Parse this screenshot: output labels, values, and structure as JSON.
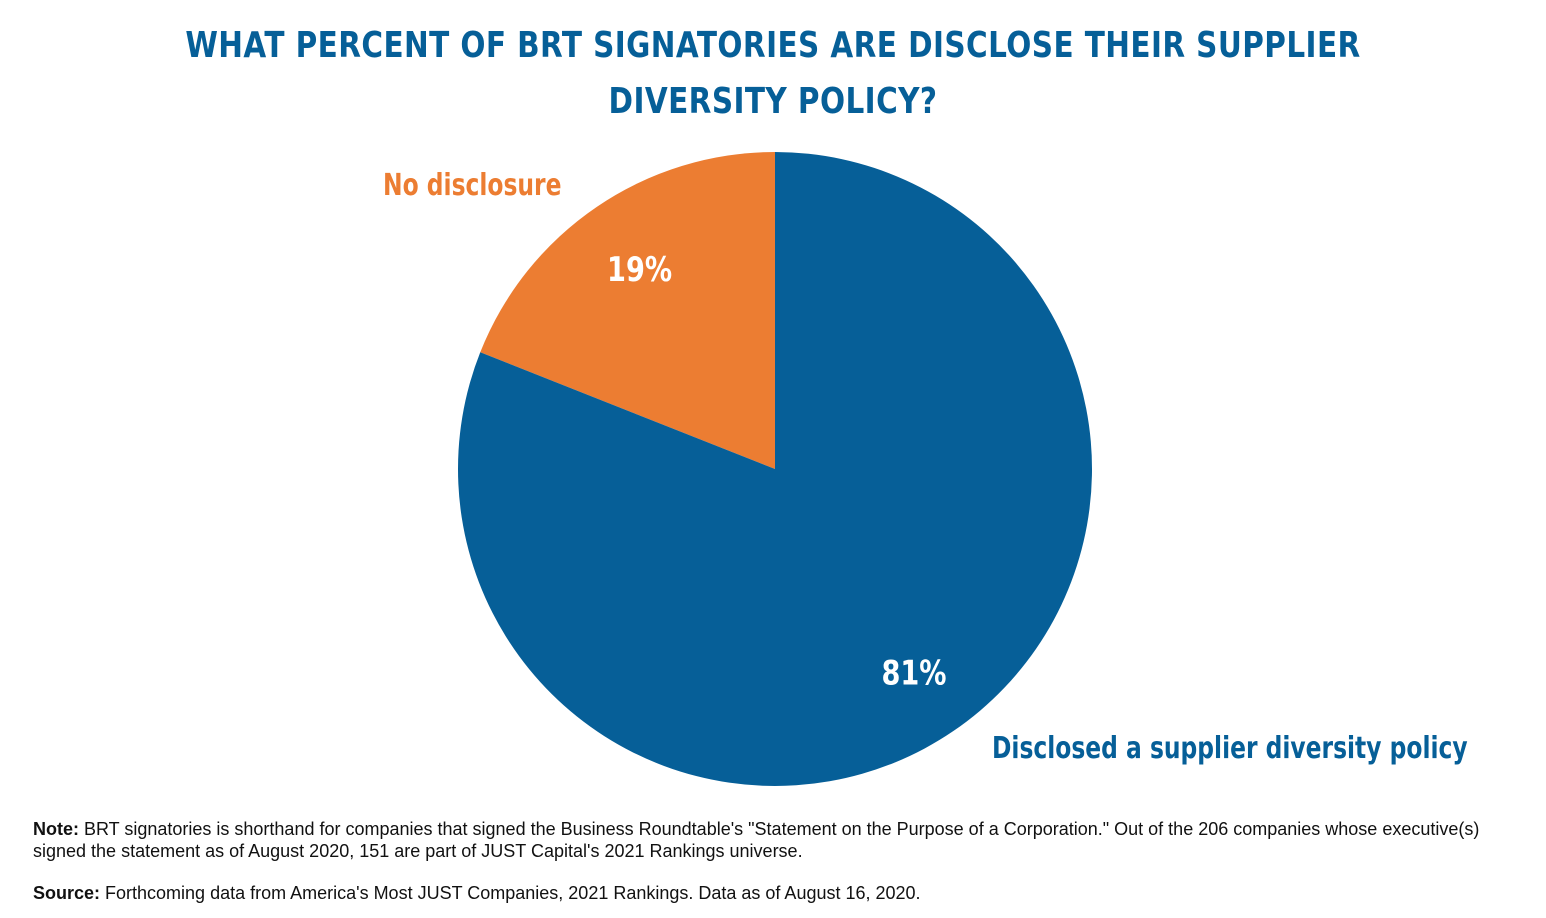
{
  "chart_data": {
    "type": "pie",
    "title_lines": [
      "WHAT PERCENT OF BRT SIGNATORIES ARE DISCLOSE THEIR SUPPLIER",
      "DIVERSITY POLICY?"
    ],
    "categories": [
      "No disclosure",
      "Disclosed a supplier diversity policy"
    ],
    "values": [
      19,
      81
    ],
    "value_labels": [
      "19%",
      "81%"
    ],
    "colors": [
      "#ec7d32",
      "#065f98"
    ],
    "label_text_color": "#ffffff"
  },
  "notes": {
    "note_label": "Note:",
    "note_text": " BRT signatories is shorthand for companies that signed the Business Roundtable's \"Statement on the Purpose of a Corporation.\" Out of the 206 companies whose executive(s) signed the statement as of August 2020, 151 are part of JUST Capital's 2021 Rankings universe.",
    "source_label": "Source:",
    "source_text": " Forthcoming data from America's Most JUST Companies, 2021 Rankings. Data as of August 16, 2020."
  }
}
